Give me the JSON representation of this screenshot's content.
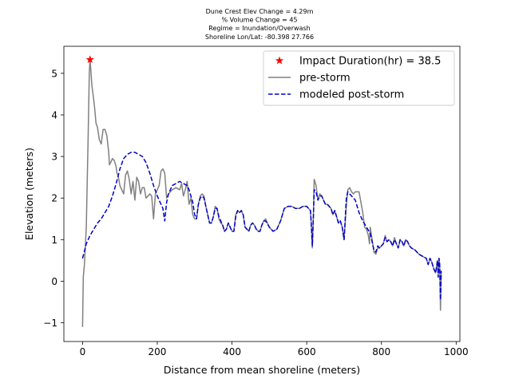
{
  "chart_data": {
    "type": "line",
    "title_lines": [
      "Dune Crest Elev Change = 4.29m",
      "% Volume Change = 45",
      "Regime = Inundation/Overwash",
      "Shoreline Lon/Lat: -80.398 27.766"
    ],
    "xlabel": "Distance from mean shoreline (meters)",
    "ylabel": "Elevation (meters)",
    "xlim": [
      -50,
      1010
    ],
    "ylim": [
      -1.45,
      5.65
    ],
    "xticks": [
      0,
      200,
      400,
      600,
      800,
      1000
    ],
    "xtick_labels": [
      "0",
      "200",
      "400",
      "600",
      "800",
      "1000"
    ],
    "yticks": [
      -1,
      0,
      1,
      2,
      3,
      4,
      5
    ],
    "ytick_labels": [
      "−1",
      "0",
      "1",
      "2",
      "3",
      "4",
      "5"
    ],
    "grid": false,
    "legend_position": "upper right",
    "series": [
      {
        "name": "Impact Duration(hr) = 38.5",
        "kind": "marker",
        "marker": "star",
        "color": "#ff0000",
        "x": [
          20
        ],
        "y": [
          5.33
        ]
      },
      {
        "name": "pre-storm",
        "kind": "line",
        "color": "#808080",
        "style": "solid",
        "x": [
          0,
          2,
          5,
          10,
          15,
          18,
          20,
          22,
          25,
          28,
          32,
          36,
          40,
          45,
          50,
          55,
          60,
          65,
          70,
          72,
          75,
          80,
          85,
          90,
          92,
          95,
          100,
          105,
          110,
          115,
          120,
          125,
          130,
          135,
          140,
          145,
          150,
          155,
          160,
          165,
          170,
          175,
          180,
          185,
          190,
          195,
          200,
          205,
          210,
          215,
          220,
          225,
          230,
          240,
          250,
          260,
          265,
          270,
          275,
          280,
          285,
          290,
          295,
          300,
          305,
          310,
          315,
          320,
          325,
          330,
          335,
          340,
          345,
          350,
          355,
          360,
          365,
          370,
          375,
          380,
          385,
          390,
          395,
          400,
          405,
          410,
          415,
          420,
          425,
          430,
          435,
          440,
          445,
          450,
          455,
          460,
          465,
          470,
          475,
          480,
          485,
          490,
          500,
          510,
          520,
          530,
          540,
          550,
          560,
          570,
          580,
          590,
          595,
          600,
          605,
          610,
          612,
          615,
          618,
          620,
          625,
          630,
          635,
          640,
          645,
          650,
          655,
          660,
          665,
          670,
          675,
          680,
          685,
          690,
          695,
          700,
          703,
          706,
          710,
          715,
          720,
          725,
          730,
          740,
          750,
          755,
          760,
          765,
          768,
          770,
          775,
          780,
          785,
          790,
          795,
          800,
          805,
          810,
          815,
          820,
          825,
          830,
          835,
          840,
          845,
          850,
          855,
          860,
          865,
          870,
          875,
          880,
          890,
          900,
          910,
          920,
          925,
          930,
          935,
          940,
          945,
          950,
          952,
          954,
          956,
          958,
          960
        ],
        "y": [
          -1.1,
          0.1,
          0.4,
          1.3,
          3.5,
          5.0,
          5.33,
          5.1,
          4.7,
          4.5,
          4.2,
          3.8,
          3.7,
          3.4,
          3.3,
          3.65,
          3.65,
          3.5,
          3.1,
          2.8,
          2.85,
          2.95,
          2.9,
          2.75,
          2.6,
          2.55,
          2.3,
          2.2,
          2.1,
          2.55,
          2.65,
          2.45,
          2.1,
          2.4,
          1.95,
          2.5,
          2.4,
          2.1,
          2.25,
          2.25,
          2.0,
          2.05,
          2.1,
          2.05,
          1.5,
          2.1,
          2.2,
          2.3,
          2.65,
          2.7,
          2.6,
          2.0,
          2.1,
          2.2,
          2.25,
          2.2,
          2.35,
          2.05,
          2.2,
          2.4,
          1.85,
          2.0,
          1.6,
          1.5,
          1.5,
          1.85,
          2.05,
          2.1,
          2.05,
          1.8,
          1.6,
          1.4,
          1.4,
          1.55,
          1.8,
          1.75,
          1.5,
          1.4,
          1.35,
          1.2,
          1.25,
          1.4,
          1.3,
          1.2,
          1.2,
          1.6,
          1.7,
          1.65,
          1.7,
          1.6,
          1.3,
          1.25,
          1.2,
          1.35,
          1.4,
          1.35,
          1.25,
          1.2,
          1.2,
          1.35,
          1.45,
          1.5,
          1.3,
          1.2,
          1.25,
          1.45,
          1.75,
          1.8,
          1.8,
          1.75,
          1.75,
          1.8,
          1.8,
          1.8,
          1.75,
          1.7,
          1.4,
          0.8,
          1.6,
          2.45,
          2.3,
          1.95,
          2.1,
          2.05,
          1.95,
          1.85,
          1.85,
          1.8,
          1.75,
          1.6,
          1.7,
          1.55,
          1.4,
          1.45,
          1.3,
          1.0,
          1.4,
          1.8,
          2.2,
          2.25,
          2.15,
          2.1,
          2.15,
          2.15,
          1.65,
          1.3,
          1.25,
          1.1,
          0.9,
          1.3,
          1.0,
          0.7,
          0.65,
          0.8,
          0.8,
          0.85,
          0.9,
          1.1,
          0.95,
          1.0,
          0.95,
          0.85,
          1.05,
          0.9,
          0.8,
          1.0,
          0.95,
          0.85,
          1.0,
          0.95,
          0.85,
          0.8,
          0.75,
          0.65,
          0.6,
          0.55,
          0.4,
          0.55,
          0.45,
          0.3,
          0.2,
          0.5,
          0.1,
          0.55,
          0.4,
          -0.7,
          0.2
        ]
      },
      {
        "name": "modeled post-storm",
        "kind": "line",
        "color": "#0000cc",
        "style": "dashed",
        "x": [
          0,
          10,
          20,
          30,
          40,
          50,
          60,
          70,
          80,
          90,
          100,
          110,
          120,
          130,
          140,
          150,
          160,
          170,
          180,
          190,
          200,
          205,
          210,
          215,
          220,
          225,
          230,
          240,
          250,
          260,
          270,
          280,
          285,
          290,
          295,
          300,
          305,
          310,
          315,
          320,
          325,
          330,
          335,
          340,
          345,
          350,
          355,
          360,
          365,
          370,
          375,
          380,
          385,
          390,
          395,
          400,
          405,
          410,
          415,
          420,
          425,
          430,
          435,
          440,
          445,
          450,
          455,
          460,
          465,
          470,
          475,
          480,
          485,
          490,
          500,
          510,
          520,
          530,
          540,
          550,
          560,
          570,
          580,
          590,
          595,
          600,
          605,
          610,
          612,
          615,
          618,
          620,
          625,
          630,
          635,
          640,
          645,
          650,
          655,
          660,
          665,
          670,
          675,
          680,
          685,
          690,
          695,
          700,
          703,
          706,
          710,
          720,
          730,
          740,
          750,
          760,
          770,
          775,
          780,
          785,
          790,
          795,
          800,
          805,
          810,
          815,
          820,
          825,
          830,
          835,
          840,
          845,
          850,
          855,
          860,
          865,
          870,
          875,
          880,
          890,
          900,
          910,
          920,
          925,
          930,
          935,
          940,
          945,
          950,
          952,
          954,
          956,
          958,
          960
        ],
        "y": [
          0.55,
          0.9,
          1.1,
          1.25,
          1.4,
          1.5,
          1.65,
          1.8,
          2.05,
          2.35,
          2.7,
          2.95,
          3.05,
          3.1,
          3.1,
          3.05,
          3.0,
          2.85,
          2.6,
          2.3,
          2.05,
          1.95,
          1.85,
          1.75,
          1.45,
          1.9,
          2.1,
          2.3,
          2.35,
          2.4,
          2.35,
          2.3,
          2.2,
          2.05,
          1.9,
          1.6,
          1.5,
          1.85,
          2.0,
          2.05,
          2.0,
          1.8,
          1.6,
          1.4,
          1.4,
          1.55,
          1.75,
          1.75,
          1.55,
          1.45,
          1.35,
          1.2,
          1.25,
          1.4,
          1.3,
          1.2,
          1.2,
          1.55,
          1.7,
          1.65,
          1.7,
          1.6,
          1.3,
          1.25,
          1.2,
          1.35,
          1.4,
          1.35,
          1.25,
          1.2,
          1.2,
          1.35,
          1.45,
          1.45,
          1.3,
          1.2,
          1.25,
          1.45,
          1.75,
          1.8,
          1.8,
          1.75,
          1.75,
          1.8,
          1.8,
          1.8,
          1.75,
          1.7,
          1.4,
          0.85,
          1.6,
          2.2,
          2.15,
          1.95,
          2.05,
          2.05,
          1.95,
          1.85,
          1.85,
          1.8,
          1.75,
          1.6,
          1.7,
          1.55,
          1.4,
          1.45,
          1.3,
          1.0,
          1.5,
          2.0,
          2.15,
          2.05,
          1.95,
          1.65,
          1.45,
          1.3,
          1.15,
          0.95,
          0.75,
          0.7,
          0.85,
          0.8,
          0.85,
          0.9,
          1.05,
          0.95,
          1.0,
          0.95,
          0.85,
          1.0,
          0.9,
          0.8,
          1.0,
          0.95,
          0.85,
          1.0,
          0.95,
          0.85,
          0.8,
          0.75,
          0.65,
          0.6,
          0.55,
          0.4,
          0.55,
          0.45,
          0.3,
          0.2,
          0.5,
          0.1,
          0.55,
          0.4,
          -0.45,
          0.25
        ]
      }
    ]
  }
}
